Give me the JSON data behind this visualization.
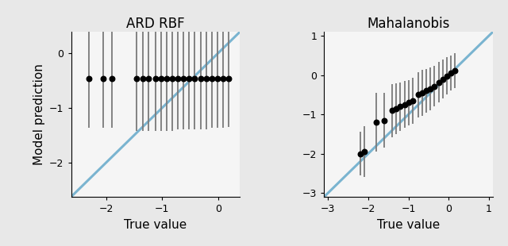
{
  "title_left": "ARD RBF",
  "title_right": "Mahalanobis",
  "xlabel": "True value",
  "ylabel": "Model prediction",
  "diag_color": "#7ab4d0",
  "diag_lw": 2.2,
  "point_color": "black",
  "point_size": 22,
  "errorbar_color": "#7a7a7a",
  "errorbar_lw": 1.3,
  "fig_facecolor": "#e8e8e8",
  "ax_facecolor": "#f5f5f5",
  "left": {
    "xlim": [
      -2.62,
      0.38
    ],
    "ylim": [
      -2.62,
      0.38
    ],
    "xticks": [
      -2,
      -1,
      0
    ],
    "yticks": [
      0,
      -1,
      -2
    ],
    "true_vals": [
      -2.3,
      -2.05,
      -1.9,
      -1.45,
      -1.35,
      -1.25,
      -1.12,
      -1.02,
      -0.92,
      -0.82,
      -0.72,
      -0.62,
      -0.52,
      -0.42,
      -0.32,
      -0.22,
      -0.12,
      -0.02,
      0.08,
      0.18
    ],
    "pred_means": [
      -0.47,
      -0.47,
      -0.47,
      -0.47,
      -0.47,
      -0.47,
      -0.47,
      -0.47,
      -0.47,
      -0.47,
      -0.47,
      -0.47,
      -0.47,
      -0.47,
      -0.47,
      -0.47,
      -0.47,
      -0.47,
      -0.47,
      -0.47
    ],
    "pred_stds": [
      0.9,
      0.9,
      0.9,
      0.95,
      0.95,
      0.95,
      0.95,
      0.95,
      0.95,
      0.95,
      0.92,
      0.92,
      0.92,
      0.92,
      0.92,
      0.92,
      0.9,
      0.9,
      0.9,
      0.88
    ]
  },
  "right": {
    "xlim": [
      -3.1,
      1.1
    ],
    "ylim": [
      -3.1,
      1.1
    ],
    "xticks": [
      -3,
      -2,
      -1,
      0,
      1
    ],
    "yticks": [
      1,
      0,
      -1,
      -2,
      -3
    ],
    "true_vals": [
      -2.2,
      -2.1,
      -1.8,
      -1.6,
      -1.4,
      -1.3,
      -1.2,
      -1.1,
      -1.0,
      -0.9,
      -0.75,
      -0.65,
      -0.55,
      -0.45,
      -0.35,
      -0.25,
      -0.15,
      -0.05,
      0.05,
      0.15
    ],
    "pred_means": [
      -2.0,
      -1.95,
      -1.2,
      -1.15,
      -0.9,
      -0.85,
      -0.8,
      -0.75,
      -0.7,
      -0.65,
      -0.5,
      -0.45,
      -0.4,
      -0.35,
      -0.28,
      -0.18,
      -0.1,
      -0.02,
      0.05,
      0.12
    ],
    "pred_stds": [
      0.55,
      0.65,
      0.75,
      0.7,
      0.68,
      0.65,
      0.62,
      0.6,
      0.58,
      0.58,
      0.58,
      0.58,
      0.55,
      0.55,
      0.52,
      0.52,
      0.5,
      0.48,
      0.45,
      0.45
    ]
  }
}
